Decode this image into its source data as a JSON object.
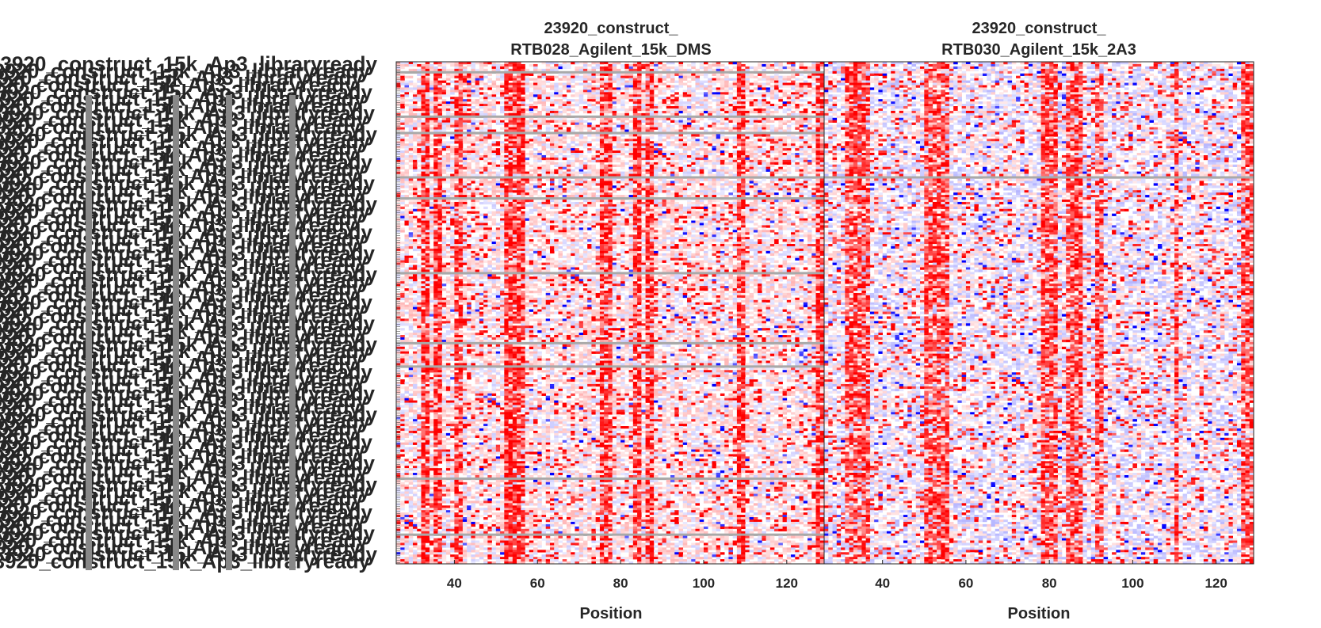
{
  "chart_data": [
    {
      "type": "heatmap",
      "title_lines": [
        "23920_construct_",
        "RTB028_Agilent_15k_DMS"
      ],
      "xlabel": "Position",
      "xlim": [
        26,
        129
      ],
      "xticks": [
        40,
        60,
        80,
        100,
        120
      ],
      "ylabel": "",
      "row_label_text": "23920_construct_15k_Ap3_libraryready",
      "colormap": [
        "#0000ff",
        "#ffffff",
        "#ff0000"
      ],
      "missing_color": "#a9a9a9",
      "reactive_columns": [
        32,
        33,
        35,
        36,
        40,
        41,
        52,
        53,
        54,
        55,
        56,
        75,
        76,
        77,
        83,
        84,
        86,
        87,
        108,
        109,
        127,
        128
      ],
      "empty_rows": [
        4,
        23,
        30,
        49,
        58,
        90,
        120,
        130,
        178,
        202
      ]
    },
    {
      "type": "heatmap",
      "title_lines": [
        "23920_construct_",
        "RTB030_Agilent_15k_2A3"
      ],
      "xlabel": "Position",
      "xlim": [
        26,
        129
      ],
      "xticks": [
        40,
        60,
        80,
        100,
        120
      ],
      "ylabel": "",
      "colormap": [
        "#0000ff",
        "#ffffff",
        "#ff0000"
      ],
      "missing_color": "#a9a9a9",
      "reactive_columns": [
        31,
        32,
        33,
        34,
        35,
        36,
        50,
        51,
        52,
        53,
        54,
        55,
        78,
        79,
        80,
        81,
        84,
        85,
        86,
        87,
        91,
        92,
        110,
        126,
        127,
        128
      ],
      "empty_rows": [
        49
      ]
    }
  ]
}
